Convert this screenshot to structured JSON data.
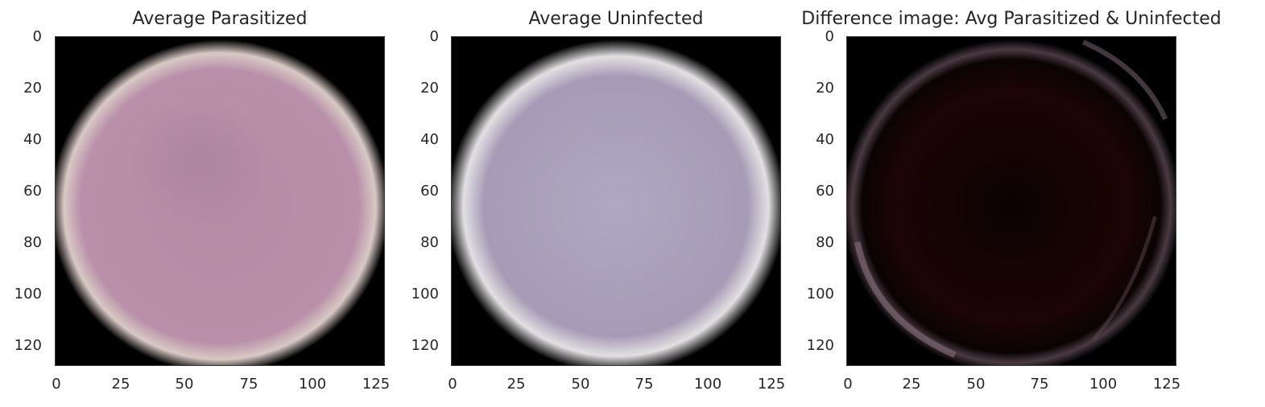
{
  "panels": [
    {
      "title": "Average Parasitized",
      "background": "#000000",
      "cell_color": "#b48aa6",
      "rim_color": "#d8c9c4"
    },
    {
      "title": "Average Uninfected",
      "background": "#000000",
      "cell_color": "#a79db8",
      "rim_color": "#e2e0e2"
    },
    {
      "title": "Difference image: Avg Parasitized & Uninfected",
      "background": "#000000",
      "cell_color": "#1c0505",
      "rim_color": "#7a6570"
    }
  ],
  "axes": {
    "x_ticks": [
      "0",
      "25",
      "50",
      "75",
      "100",
      "125"
    ],
    "y_ticks": [
      "0",
      "20",
      "40",
      "60",
      "80",
      "100",
      "120"
    ],
    "x_range": [
      0,
      128
    ],
    "y_range": [
      0,
      128
    ]
  }
}
